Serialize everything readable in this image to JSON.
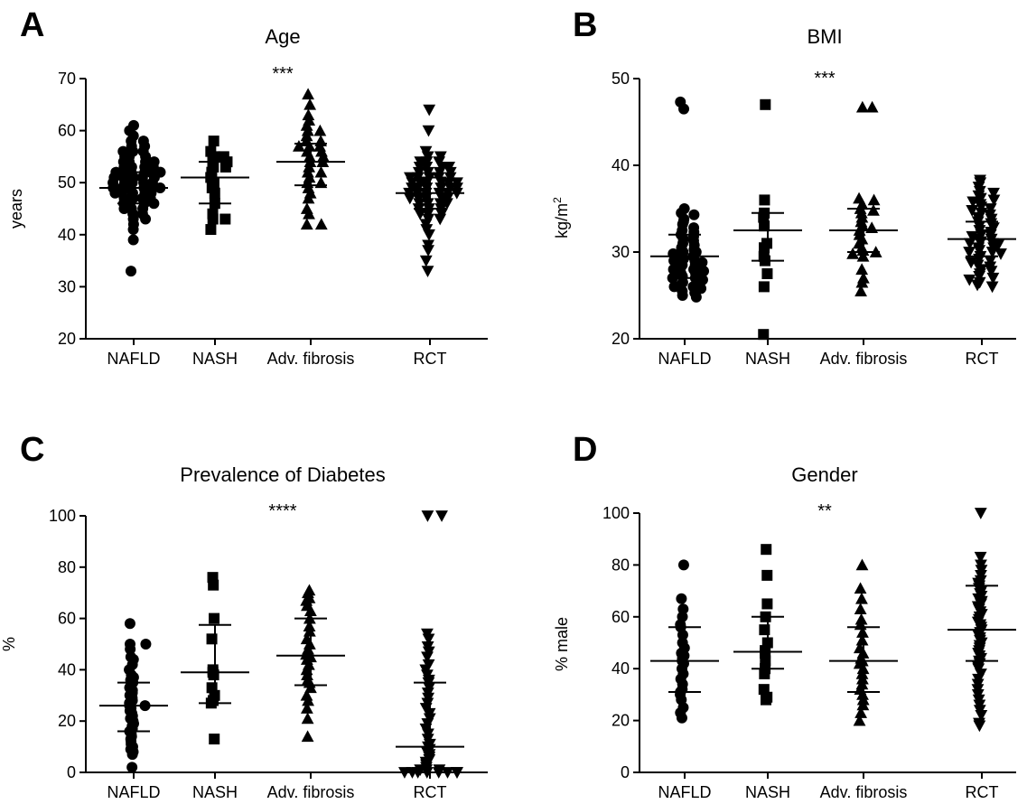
{
  "chart_data": [
    {
      "panel": "A",
      "type": "scatter",
      "title": "Age",
      "ylabel": "years",
      "ylabel_sup": "",
      "ylim": [
        20,
        70
      ],
      "yticks": [
        20,
        30,
        40,
        50,
        60,
        70
      ],
      "categories": [
        "NAFLD",
        "NASH",
        "Adv. fibrosis",
        "RCT"
      ],
      "significance": "***",
      "series": [
        {
          "category": "NAFLD",
          "marker": "circle",
          "mean": 49,
          "sd_low": 46,
          "sd_high": 52,
          "values": [
            61,
            60,
            59,
            58,
            58,
            57,
            57,
            56,
            56,
            56,
            55,
            55,
            55,
            54,
            54,
            54,
            54,
            53,
            53,
            53,
            53,
            52,
            52,
            52,
            52,
            52,
            52,
            51,
            51,
            51,
            51,
            51,
            50,
            50,
            50,
            50,
            50,
            49,
            49,
            49,
            49,
            49,
            49,
            48,
            48,
            48,
            48,
            48,
            47,
            47,
            47,
            47,
            46,
            46,
            46,
            46,
            45,
            45,
            45,
            44,
            44,
            43,
            43,
            42,
            41,
            39,
            33
          ]
        },
        {
          "category": "NASH",
          "marker": "square",
          "mean": 51,
          "sd_low": 46,
          "sd_high": 54,
          "values": [
            58,
            56,
            55,
            55,
            54,
            54,
            53,
            53,
            52,
            51,
            50,
            49,
            48,
            46,
            44,
            43,
            43,
            41
          ]
        },
        {
          "category": "Adv. fibrosis",
          "marker": "triangle-up",
          "mean": 54,
          "sd_low": 49.5,
          "sd_high": 57.5,
          "values": [
            67,
            65,
            63,
            62,
            61,
            60,
            60,
            59,
            58,
            58,
            57,
            57,
            57,
            56,
            56,
            55,
            55,
            54,
            54,
            53,
            52,
            52,
            51,
            50,
            50,
            49,
            48,
            47,
            45,
            44,
            42,
            42
          ]
        },
        {
          "category": "RCT",
          "marker": "triangle-down",
          "mean": 48,
          "sd_low": 45,
          "sd_high": 51,
          "values": [
            64,
            60,
            56,
            55,
            55,
            54,
            54,
            54,
            53,
            53,
            53,
            53,
            52,
            52,
            52,
            52,
            51,
            51,
            51,
            51,
            51,
            50,
            50,
            50,
            50,
            50,
            50,
            49,
            49,
            49,
            49,
            49,
            49,
            48,
            48,
            48,
            48,
            48,
            48,
            47,
            47,
            47,
            47,
            47,
            46,
            46,
            46,
            46,
            45,
            45,
            45,
            44,
            44,
            44,
            43,
            43,
            42,
            41,
            40,
            38,
            37,
            35,
            33
          ]
        }
      ]
    },
    {
      "panel": "B",
      "type": "scatter",
      "title": "BMI",
      "ylabel": "kg/m",
      "ylabel_sup": "2",
      "ylim": [
        20,
        50
      ],
      "yticks": [
        20,
        30,
        40,
        50
      ],
      "categories": [
        "NAFLD",
        "NASH",
        "Adv. fibrosis",
        "RCT"
      ],
      "significance": "***",
      "series": [
        {
          "category": "NAFLD",
          "marker": "circle",
          "mean": 29.5,
          "sd_low": 27,
          "sd_high": 32,
          "values": [
            47.3,
            46.5,
            35,
            34.5,
            34.3,
            33.8,
            33.5,
            33.2,
            32.8,
            32.5,
            32.3,
            32,
            31.8,
            31.5,
            31.3,
            31,
            30.8,
            30.5,
            30.3,
            30,
            30,
            29.8,
            29.5,
            29.5,
            29.2,
            29,
            29,
            28.8,
            28.5,
            28.5,
            28.2,
            28,
            28,
            27.8,
            27.5,
            27.5,
            27.2,
            27,
            27,
            26.8,
            26.5,
            26.5,
            26.2,
            26,
            26,
            25.8,
            25.5,
            25.3,
            25,
            24.8
          ]
        },
        {
          "category": "NASH",
          "marker": "square",
          "mean": 32.5,
          "sd_low": 29,
          "sd_high": 34.5,
          "values": [
            47,
            36,
            34.5,
            34,
            33,
            31,
            30.5,
            29.5,
            29,
            27.5,
            26,
            20.5
          ]
        },
        {
          "category": "Adv. fibrosis",
          "marker": "triangle-up",
          "mean": 32.5,
          "sd_low": 30,
          "sd_high": 35,
          "values": [
            46.7,
            46.7,
            36.2,
            36,
            35.5,
            35,
            34.8,
            34.5,
            34,
            33.5,
            33,
            32.8,
            32.5,
            32,
            31.5,
            31,
            30.5,
            30.2,
            30,
            29.8,
            29.5,
            28,
            27,
            26.5,
            25.5
          ]
        },
        {
          "category": "RCT",
          "marker": "triangle-down",
          "mean": 31.5,
          "sd_low": 29.5,
          "sd_high": 33.5,
          "values": [
            38.3,
            38,
            37.5,
            37,
            36.8,
            36.5,
            36.2,
            36,
            35.8,
            35.5,
            35.2,
            35,
            34.8,
            34.5,
            34.3,
            34,
            33.8,
            33.5,
            33.3,
            33,
            32.8,
            32.5,
            32.3,
            32,
            32,
            31.8,
            31.5,
            31.5,
            31.2,
            31,
            31,
            30.8,
            30.5,
            30.5,
            30.2,
            30,
            30,
            29.8,
            29.5,
            29.2,
            29,
            28.8,
            28.5,
            28.3,
            28,
            27.8,
            27.5,
            27.2,
            27,
            26.8,
            26.5,
            26.2,
            26
          ]
        }
      ]
    },
    {
      "panel": "C",
      "type": "scatter",
      "title": "Prevalence of Diabetes",
      "ylabel": "%",
      "ylabel_sup": "",
      "ylim": [
        0,
        100
      ],
      "yticks": [
        0,
        20,
        40,
        60,
        80,
        100
      ],
      "categories": [
        "NAFLD",
        "NASH",
        "Adv. fibrosis",
        "RCT"
      ],
      "significance": "****",
      "series": [
        {
          "category": "NAFLD",
          "marker": "circle",
          "mean": 26,
          "sd_low": 16,
          "sd_high": 35,
          "values": [
            58,
            50,
            50,
            48,
            45,
            44,
            42,
            40,
            38,
            37,
            36,
            35,
            34,
            33,
            32,
            31,
            30,
            29,
            28,
            27,
            26,
            26,
            25,
            24,
            23,
            22,
            21,
            20,
            19,
            18,
            17,
            16,
            15,
            14,
            13,
            12,
            11,
            10,
            9,
            8,
            7,
            2
          ]
        },
        {
          "category": "NASH",
          "marker": "square",
          "mean": 39,
          "sd_low": 27,
          "sd_high": 57.5,
          "values": [
            76,
            73,
            60,
            52,
            40,
            39,
            38,
            33,
            30,
            28,
            27,
            13
          ]
        },
        {
          "category": "Adv. fibrosis",
          "marker": "triangle-up",
          "mean": 45.5,
          "sd_low": 34,
          "sd_high": 60,
          "values": [
            71,
            70,
            68,
            67,
            65,
            63,
            60,
            57,
            55,
            52,
            50,
            48,
            46,
            45,
            44,
            42,
            40,
            38,
            36,
            35,
            33,
            30,
            28,
            25,
            21,
            14
          ]
        },
        {
          "category": "RCT",
          "marker": "triangle-down",
          "mean": 10,
          "sd_low": 0,
          "sd_high": 35,
          "values": [
            100,
            100,
            54,
            52,
            49,
            47,
            45,
            42,
            40,
            38,
            36,
            35,
            33,
            31,
            29,
            27,
            25,
            23,
            21,
            19,
            17,
            15,
            13,
            11,
            10,
            9,
            8,
            7,
            6,
            5,
            4,
            3,
            2,
            1,
            1,
            1,
            0,
            0,
            0,
            0,
            0,
            0,
            0,
            0
          ]
        }
      ]
    },
    {
      "panel": "D",
      "type": "scatter",
      "title": "Gender",
      "ylabel": "% male",
      "ylabel_sup": "",
      "ylim": [
        0,
        100
      ],
      "yticks": [
        0,
        20,
        40,
        60,
        80,
        100
      ],
      "categories": [
        "NAFLD",
        "NASH",
        "Adv. fibrosis",
        "RCT"
      ],
      "significance": "**",
      "series": [
        {
          "category": "NAFLD",
          "marker": "circle",
          "mean": 43,
          "sd_low": 31,
          "sd_high": 56,
          "values": [
            80,
            67,
            63,
            60,
            57,
            56,
            53,
            50,
            48,
            46,
            45,
            44,
            43,
            42,
            40,
            38,
            36,
            34,
            32,
            31,
            30,
            28,
            25,
            23,
            21
          ]
        },
        {
          "category": "NASH",
          "marker": "square",
          "mean": 46.5,
          "sd_low": 40,
          "sd_high": 60,
          "values": [
            86,
            76,
            65,
            60,
            55,
            50,
            47,
            46,
            43,
            40,
            38,
            32,
            29,
            28
          ]
        },
        {
          "category": "Adv. fibrosis",
          "marker": "triangle-up",
          "mean": 43,
          "sd_low": 31,
          "sd_high": 56,
          "values": [
            80,
            71,
            67,
            63,
            59,
            57,
            54,
            51,
            48,
            46,
            44,
            43,
            42,
            40,
            38,
            36,
            34,
            32,
            30,
            28,
            26,
            23,
            20
          ]
        },
        {
          "category": "RCT",
          "marker": "triangle-down",
          "mean": 55,
          "sd_low": 43,
          "sd_high": 72,
          "values": [
            100,
            83,
            80,
            78,
            76,
            74,
            73,
            72,
            71,
            70,
            69,
            68,
            67,
            66,
            65,
            64,
            63,
            62,
            61,
            60,
            59,
            58,
            57,
            56,
            55,
            54,
            53,
            52,
            51,
            50,
            49,
            48,
            47,
            46,
            45,
            44,
            43,
            42,
            41,
            40,
            38,
            36,
            34,
            32,
            30,
            28,
            26,
            24,
            22,
            19,
            18
          ]
        }
      ]
    }
  ]
}
